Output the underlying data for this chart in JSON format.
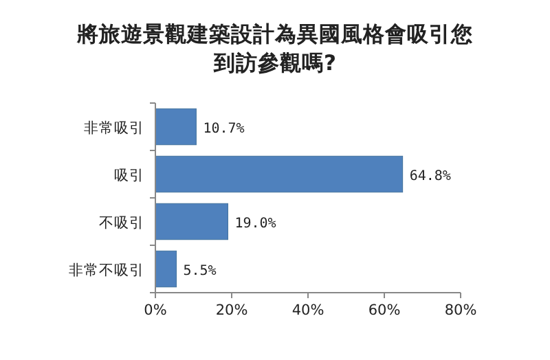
{
  "chart_data": {
    "type": "bar",
    "orientation": "horizontal",
    "title": "將旅遊景觀建築設計為異國風格會吸引您到訪參觀嗎?",
    "categories": [
      "非常吸引",
      "吸引",
      "不吸引",
      "非常不吸引"
    ],
    "values": [
      10.7,
      64.8,
      19.0,
      5.5
    ],
    "value_labels": [
      "10.7%",
      "64.8%",
      "19.0%",
      "5.5%"
    ],
    "color": "#4f81bd",
    "xlim": [
      0,
      80
    ],
    "xticks": [
      {
        "value": 0,
        "label": "0%"
      },
      {
        "value": 20,
        "label": "20%"
      },
      {
        "value": 40,
        "label": "40%"
      },
      {
        "value": 60,
        "label": "60%"
      },
      {
        "value": 80,
        "label": "80%"
      }
    ],
    "grid": false
  }
}
